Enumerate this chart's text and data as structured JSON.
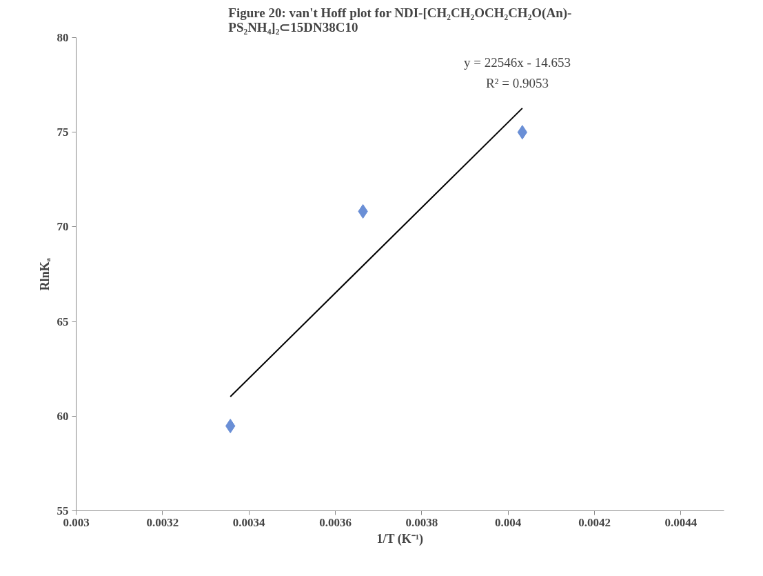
{
  "chart_data": {
    "type": "scatter",
    "title": "Figure 20: van't Hoff plot for NDI-[CH₂CH₂OCH₂CH₂O(An)-\nPS₂NH₄]₂⊂15DN38C10",
    "xlabel": "1/T (K⁻¹)",
    "ylabel": "RlnKₐ",
    "series": [
      {
        "color": "#6a8fd6",
        "marker": "diamond",
        "x": [
          0.003357,
          0.003664,
          0.004033
        ],
        "values": [
          59.48,
          70.82,
          75.0
        ]
      },
      {
        "type": "line",
        "color": "#000000",
        "marker": "none",
        "x": [
          0.003357,
          0.004033
        ],
        "values": [
          61.03,
          76.27
        ]
      }
    ],
    "annotations": [
      "y = 22546x - 14.653",
      "R² = 0.9053"
    ],
    "xlim": [
      0.003,
      0.0045
    ],
    "xticks": [
      0.003,
      0.0032,
      0.0034,
      0.0036,
      0.0038,
      0.004,
      0.0042,
      0.0044
    ],
    "ylim": [
      55,
      80
    ],
    "yticks": [
      55,
      60,
      65,
      70,
      75,
      80
    ],
    "grid": false
  }
}
